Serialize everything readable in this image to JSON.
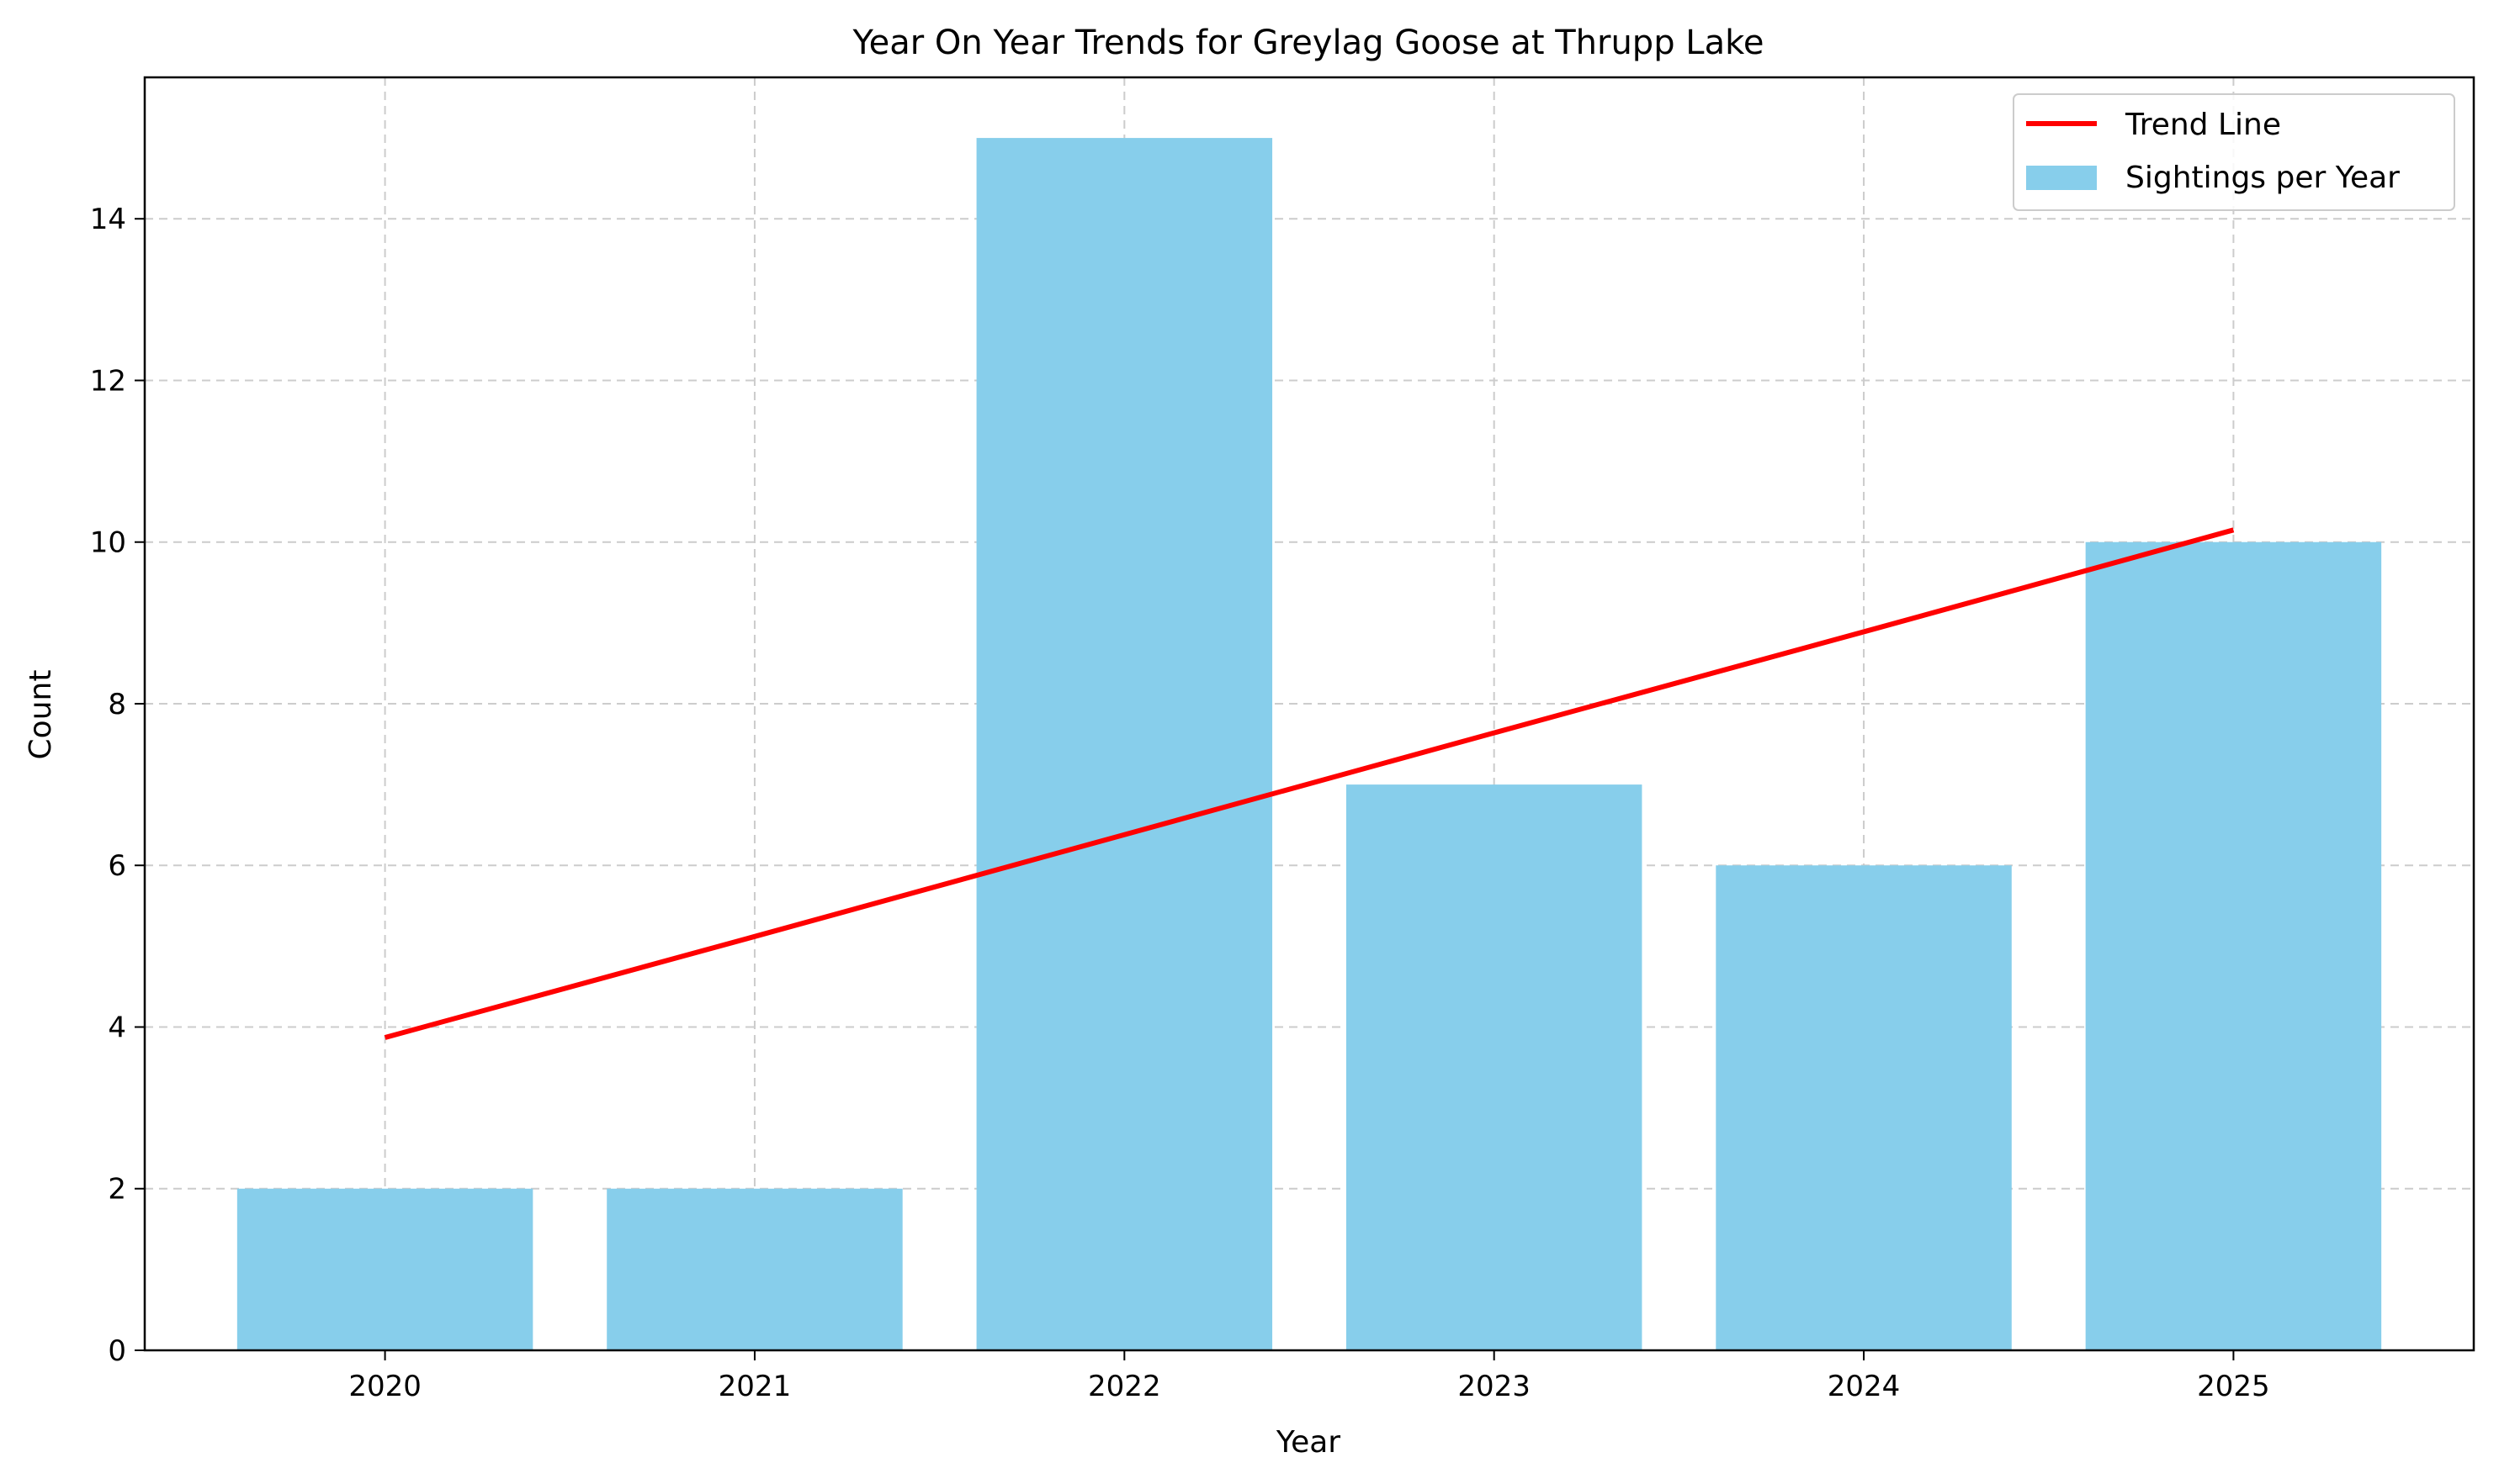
{
  "chart_data": {
    "type": "bar",
    "title": "Year On Year Trends for Greylag Goose at Thrupp Lake",
    "xlabel": "Year",
    "ylabel": "Count",
    "categories": [
      "2020",
      "2021",
      "2022",
      "2023",
      "2024",
      "2025"
    ],
    "series": [
      {
        "name": "Sightings per Year",
        "type": "bar",
        "values": [
          2,
          2,
          15,
          7,
          6,
          10
        ],
        "color": "#87CEEB"
      },
      {
        "name": "Trend Line",
        "type": "line",
        "values": [
          3.87,
          5.12,
          6.38,
          7.64,
          8.89,
          10.15
        ],
        "color": "#FF0000"
      }
    ],
    "ylim": [
      0,
      15.75
    ],
    "yticks": [
      0,
      2,
      4,
      6,
      8,
      10,
      12,
      14
    ],
    "grid": true,
    "legend_position": "top-right"
  }
}
